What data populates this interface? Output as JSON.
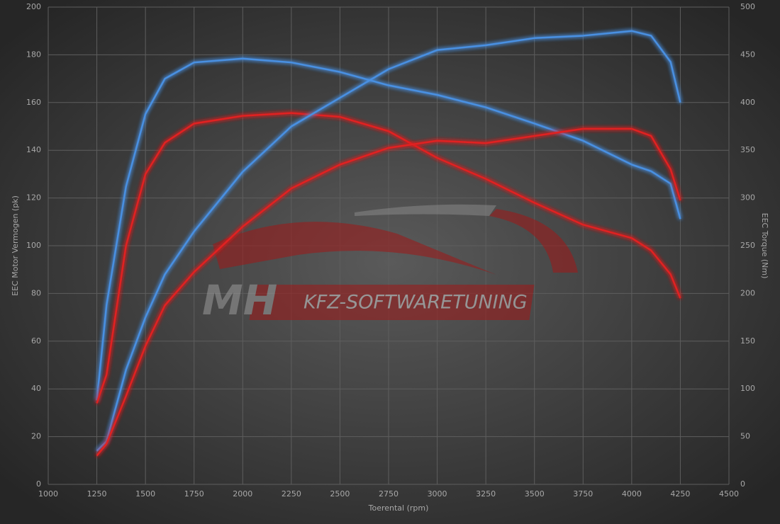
{
  "chart_data": {
    "type": "line",
    "x_label": "Toerental (rpm)",
    "y_label": "EEC Motor Vermogen (pk)",
    "y2_label": "EEC Torque (Nm)",
    "watermark": {
      "logo": "MH",
      "text": "KFZ-SOFTWARETUNING"
    },
    "x": [
      1250,
      1300,
      1400,
      1500,
      1600,
      1750,
      2000,
      2250,
      2500,
      2750,
      3000,
      3250,
      3500,
      3750,
      4000,
      4100,
      4200,
      4250
    ],
    "series": [
      {
        "color": "#4a90e2",
        "axis": "y2",
        "values": [
          88,
          188,
          312,
          388,
          425,
          442,
          446,
          442,
          432,
          418,
          408,
          395,
          378,
          360,
          335,
          328,
          315,
          278
        ]
      },
      {
        "color": "#e02020",
        "axis": "y2",
        "values": [
          85,
          115,
          250,
          325,
          358,
          378,
          386,
          389,
          385,
          370,
          342,
          320,
          295,
          272,
          258,
          245,
          220,
          195
        ]
      },
      {
        "color": "#4a90e2",
        "values": [
          14,
          18,
          48,
          70,
          88,
          106,
          131,
          150,
          162,
          174,
          182,
          184,
          187,
          188,
          190,
          188,
          177,
          160
        ]
      },
      {
        "color": "#e02020",
        "values": [
          12,
          17,
          37,
          58,
          75,
          89,
          108,
          124,
          134,
          141,
          144,
          143,
          146,
          149,
          149,
          146,
          132,
          119
        ]
      }
    ],
    "xlim": [
      1000,
      4500
    ],
    "xticks": [
      1000,
      1250,
      1500,
      1750,
      2000,
      2250,
      2500,
      2750,
      3000,
      3250,
      3500,
      3750,
      4000,
      4250,
      4500
    ],
    "ylim": [
      0,
      200
    ],
    "yticks": [
      0,
      20,
      40,
      60,
      80,
      100,
      120,
      140,
      160,
      180,
      200
    ],
    "y2lim": [
      0,
      500
    ],
    "y2ticks": [
      0,
      50,
      100,
      150,
      200,
      250,
      300,
      350,
      400,
      450,
      500
    ],
    "grid": true
  }
}
